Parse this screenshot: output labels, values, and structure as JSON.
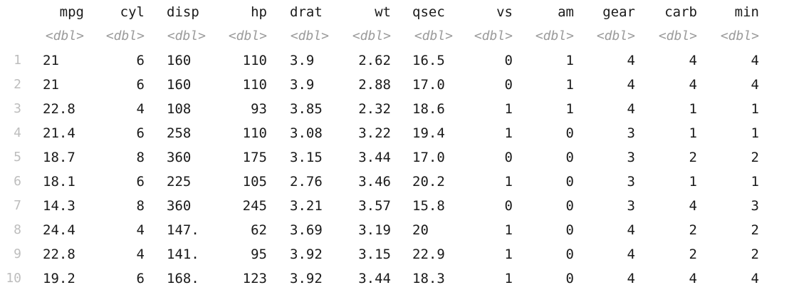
{
  "tibble": {
    "columns": [
      "mpg",
      "cyl",
      "disp",
      "hp",
      "drat",
      "wt",
      "qsec",
      "vs",
      "am",
      "gear",
      "carb",
      "min"
    ],
    "types": [
      "<dbl>",
      "<dbl>",
      "<dbl>",
      "<dbl>",
      "<dbl>",
      "<dbl>",
      "<dbl>",
      "<dbl>",
      "<dbl>",
      "<dbl>",
      "<dbl>",
      "<dbl>"
    ],
    "rows": [
      {
        "n": "1",
        "cells": [
          "21",
          "6",
          "160",
          "110",
          "3.9",
          "2.62",
          "16.5",
          "0",
          "1",
          "4",
          "4",
          "4"
        ]
      },
      {
        "n": "2",
        "cells": [
          "21",
          "6",
          "160",
          "110",
          "3.9",
          "2.88",
          "17.0",
          "0",
          "1",
          "4",
          "4",
          "4"
        ]
      },
      {
        "n": "3",
        "cells": [
          "22.8",
          "4",
          "108",
          "93",
          "3.85",
          "2.32",
          "18.6",
          "1",
          "1",
          "4",
          "1",
          "1"
        ]
      },
      {
        "n": "4",
        "cells": [
          "21.4",
          "6",
          "258",
          "110",
          "3.08",
          "3.22",
          "19.4",
          "1",
          "0",
          "3",
          "1",
          "1"
        ]
      },
      {
        "n": "5",
        "cells": [
          "18.7",
          "8",
          "360",
          "175",
          "3.15",
          "3.44",
          "17.0",
          "0",
          "0",
          "3",
          "2",
          "2"
        ]
      },
      {
        "n": "6",
        "cells": [
          "18.1",
          "6",
          "225",
          "105",
          "2.76",
          "3.46",
          "20.2",
          "1",
          "0",
          "3",
          "1",
          "1"
        ]
      },
      {
        "n": "7",
        "cells": [
          "14.3",
          "8",
          "360",
          "245",
          "3.21",
          "3.57",
          "15.8",
          "0",
          "0",
          "3",
          "4",
          "3"
        ]
      },
      {
        "n": "8",
        "cells": [
          "24.4",
          "4",
          "147.",
          "62",
          "3.69",
          "3.19",
          "20",
          "1",
          "0",
          "4",
          "2",
          "2"
        ]
      },
      {
        "n": "9",
        "cells": [
          "22.8",
          "4",
          "141.",
          "95",
          "3.92",
          "3.15",
          "22.9",
          "1",
          "0",
          "4",
          "2",
          "2"
        ]
      },
      {
        "n": "10",
        "cells": [
          "19.2",
          "6",
          "168.",
          "123",
          "3.92",
          "3.44",
          "18.3",
          "1",
          "0",
          "4",
          "4",
          "4"
        ]
      }
    ]
  }
}
